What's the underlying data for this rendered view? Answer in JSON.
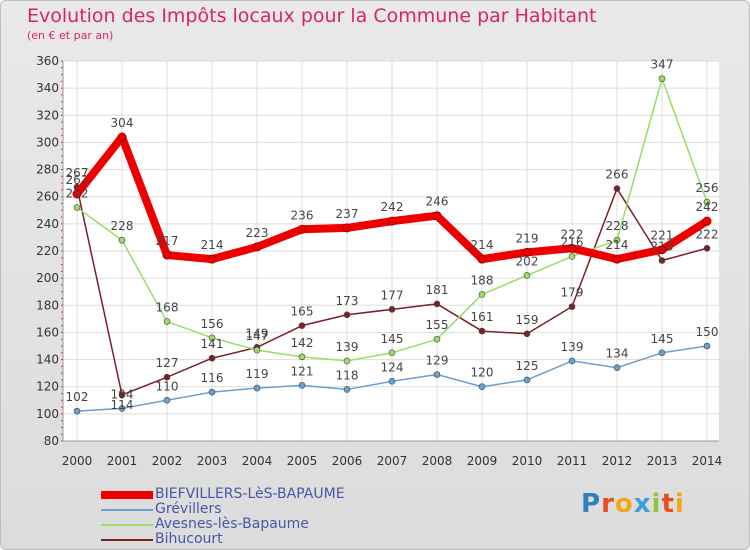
{
  "title": "Evolution des Impôts locaux pour la Commune par Habitant",
  "subtitle": "(en € et par an)",
  "logo": "Proxiti",
  "chart_data": {
    "type": "line",
    "x": [
      "2000",
      "2001",
      "2002",
      "2003",
      "2004",
      "2005",
      "2006",
      "2007",
      "2008",
      "2009",
      "2010",
      "2011",
      "2012",
      "2013",
      "2014"
    ],
    "ylim": [
      80,
      360
    ],
    "yticks": [
      80,
      100,
      120,
      140,
      160,
      180,
      200,
      220,
      240,
      260,
      280,
      300,
      320,
      340,
      360
    ],
    "grid": true,
    "legend_position": "bottom",
    "series": [
      {
        "name": "BIEFVILLERS-LèS-BAPAUME",
        "color": "#ee0000",
        "width": 8,
        "values": [
          262,
          304,
          217,
          214,
          223,
          236,
          237,
          242,
          246,
          214,
          219,
          222,
          214,
          221,
          242
        ]
      },
      {
        "name": "Grévillers",
        "color": "#6aa0cf",
        "width": 1.5,
        "values": [
          102,
          104,
          110,
          116,
          119,
          121,
          118,
          124,
          129,
          120,
          125,
          139,
          134,
          145,
          150
        ]
      },
      {
        "name": "Avesnes-lès-Bapaume",
        "color": "#99dd66",
        "width": 1.5,
        "values": [
          252,
          228,
          168,
          156,
          147,
          142,
          139,
          145,
          155,
          188,
          202,
          216,
          228,
          347,
          256
        ]
      },
      {
        "name": "Bihucourt",
        "color": "#7a2228",
        "width": 1.5,
        "values": [
          267,
          114,
          127,
          141,
          149,
          165,
          173,
          177,
          181,
          161,
          159,
          179,
          266,
          213,
          222
        ]
      }
    ]
  }
}
